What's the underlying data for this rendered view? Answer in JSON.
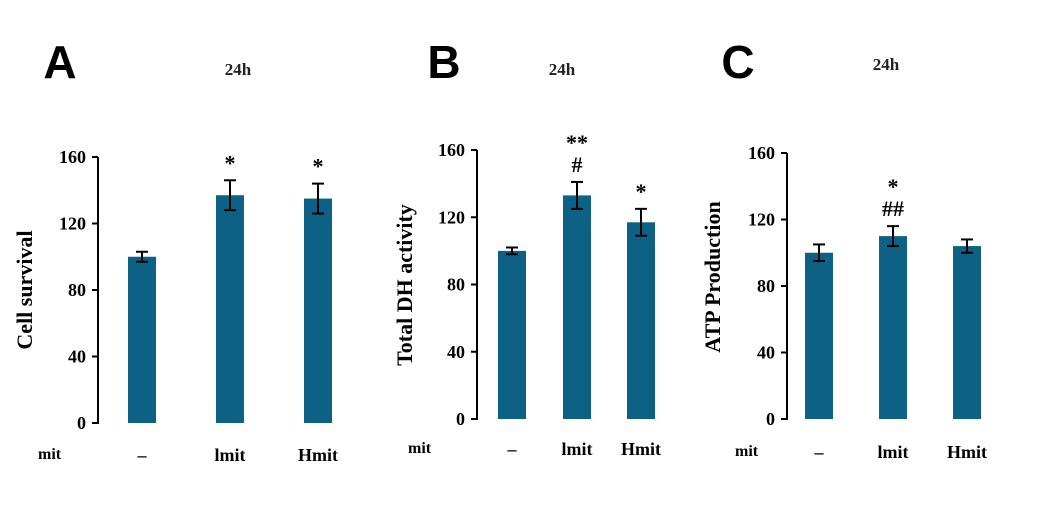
{
  "chart_data": [
    {
      "type": "bar",
      "panel": "A",
      "title": "24h",
      "row_label": "mit",
      "ylabel": "Cell survival",
      "xlabel": "",
      "categories": [
        "–",
        "lmit",
        "Hmit"
      ],
      "values": [
        100,
        137,
        135
      ],
      "errors": [
        3,
        9,
        9
      ],
      "annotations": [
        [],
        [
          "*"
        ],
        [
          "*"
        ]
      ],
      "ylim": [
        0,
        160
      ],
      "yticks": [
        0,
        40,
        80,
        120,
        160
      ],
      "grid": false,
      "bar_color": "#0d6185"
    },
    {
      "type": "bar",
      "panel": "B",
      "title": "24h",
      "row_label": "mit",
      "ylabel": "Total DH activity",
      "xlabel": "",
      "categories": [
        "–",
        "lmit",
        "Hmit"
      ],
      "values": [
        100,
        133,
        117
      ],
      "errors": [
        2,
        8,
        8
      ],
      "annotations": [
        [],
        [
          "**",
          "#"
        ],
        [
          "*"
        ]
      ],
      "ylim": [
        0,
        160
      ],
      "yticks": [
        0,
        40,
        80,
        120,
        160
      ],
      "grid": false,
      "bar_color": "#0d6185"
    },
    {
      "type": "bar",
      "panel": "C",
      "title": "24h",
      "row_label": "mit",
      "ylabel": "ATP Production",
      "xlabel": "",
      "categories": [
        "–",
        "lmit",
        "Hmit"
      ],
      "values": [
        100,
        110,
        104
      ],
      "errors": [
        5,
        6,
        4
      ],
      "annotations": [
        [],
        [
          "*",
          "##"
        ],
        []
      ],
      "ylim": [
        0,
        160
      ],
      "yticks": [
        0,
        40,
        80,
        120,
        160
      ],
      "grid": false,
      "bar_color": "#0d6185"
    }
  ]
}
